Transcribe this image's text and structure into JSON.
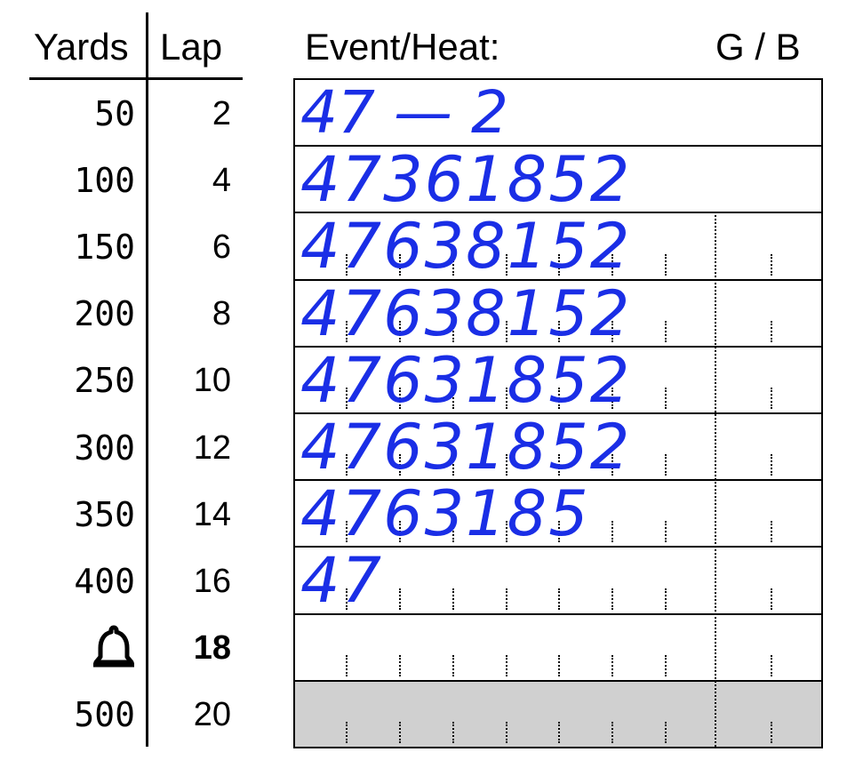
{
  "headers": {
    "yards": "Yards",
    "lap": "Lap",
    "event_heat": "Event/Heat:",
    "gender": "G / B"
  },
  "splits": [
    {
      "yards": "50",
      "lap": "2"
    },
    {
      "yards": "100",
      "lap": "4"
    },
    {
      "yards": "150",
      "lap": "6"
    },
    {
      "yards": "200",
      "lap": "8"
    },
    {
      "yards": "250",
      "lap": "10"
    },
    {
      "yards": "300",
      "lap": "12"
    },
    {
      "yards": "350",
      "lap": "14"
    },
    {
      "yards": "400",
      "lap": "16"
    },
    {
      "yards": "",
      "lap": "18",
      "icon": "bell-icon",
      "bold": true,
      "highlight": true
    },
    {
      "yards": "500",
      "lap": "20"
    }
  ],
  "event_entry": "47 — 2",
  "lane_orders": [
    "47361852",
    "47638152",
    "47638152",
    "47631852",
    "47631852",
    "4763185",
    "47",
    "",
    ""
  ],
  "colors": {
    "ink": "#1a2ee6",
    "highlight": "#d0d0d0"
  }
}
